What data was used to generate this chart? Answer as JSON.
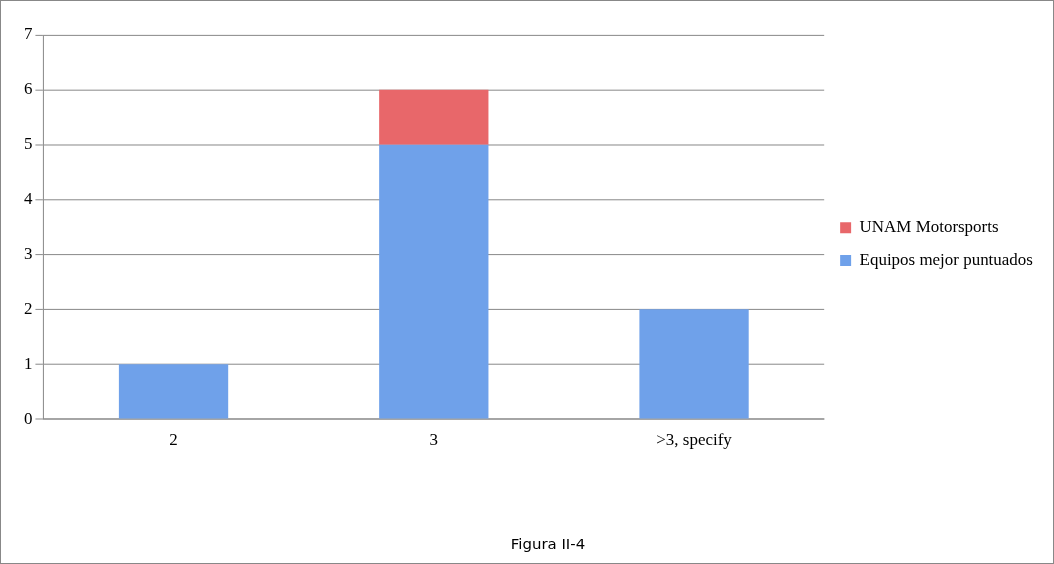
{
  "chart_data": {
    "type": "bar",
    "stacked": true,
    "categories": [
      "2",
      "3",
      ">3, specify"
    ],
    "series": [
      {
        "name": "Equipos mejor puntuados",
        "color": "#6fa1ea",
        "values": [
          1,
          5,
          2
        ]
      },
      {
        "name": "UNAM Motorsports",
        "color": "#e8676a",
        "values": [
          0,
          1,
          0
        ]
      }
    ],
    "ylim": [
      0,
      7
    ],
    "yticks": [
      0,
      1,
      2,
      3,
      4,
      5,
      6,
      7
    ],
    "grid": "y",
    "legend": "right",
    "annotations": [
      "Figura II-4"
    ]
  }
}
